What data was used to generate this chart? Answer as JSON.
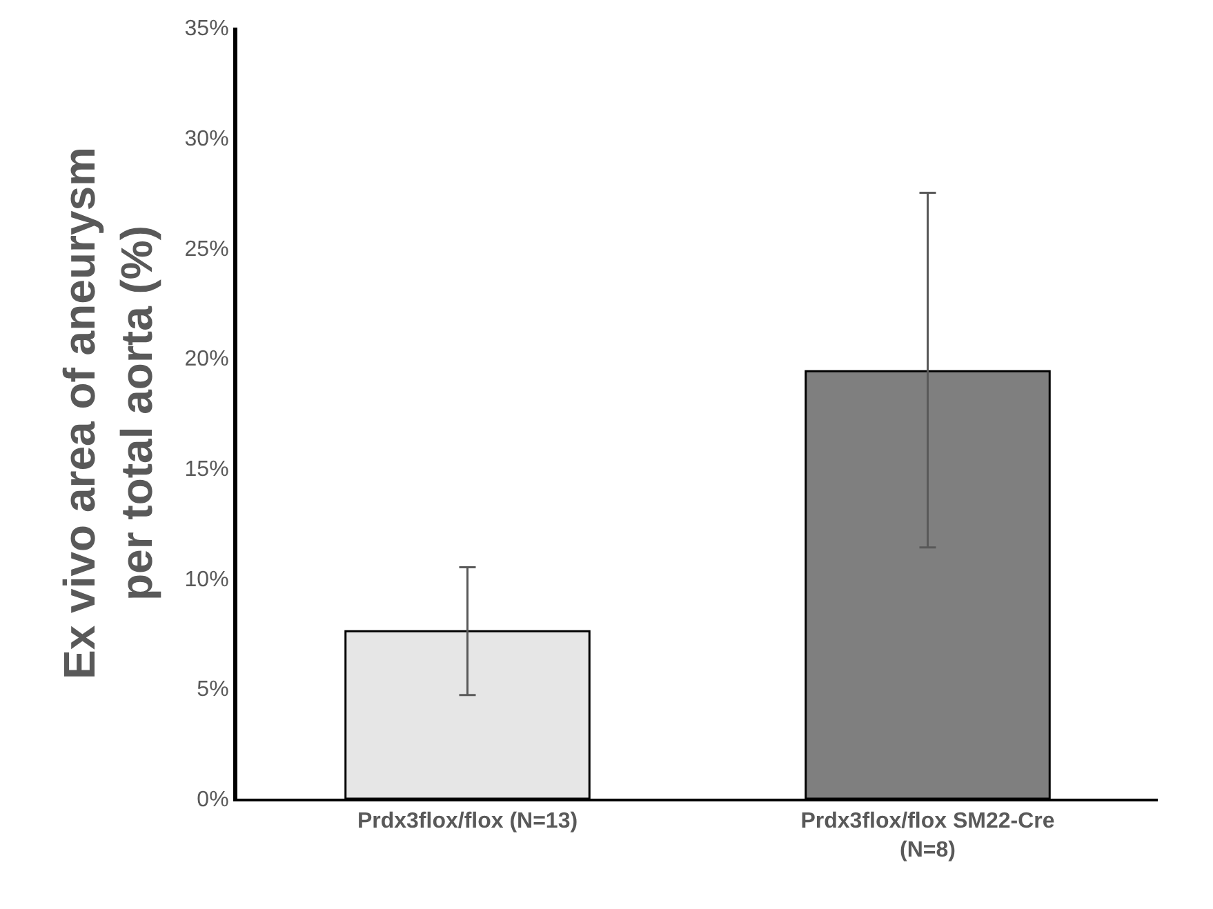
{
  "chart_data": {
    "type": "bar",
    "ylabel": "Ex vivo area of aneurysm per total aorta (%)",
    "categories": [
      "Prdx3flox/flox (N=13)",
      "Prdx3flox/flox SM22-Cre (N=8)"
    ],
    "values": [
      7.6,
      19.4
    ],
    "colors": [
      "#e6e6e6",
      "#7f7f7f"
    ],
    "errors": [
      [
        4.7,
        10.5
      ],
      [
        11.4,
        27.5
      ]
    ],
    "ylim": [
      0,
      35
    ],
    "yticks": [
      {
        "value": 0,
        "label": "0%"
      },
      {
        "value": 5,
        "label": "5%"
      },
      {
        "value": 10,
        "label": "10%"
      },
      {
        "value": 15,
        "label": "15%"
      },
      {
        "value": 20,
        "label": "20%"
      },
      {
        "value": 25,
        "label": "25%"
      },
      {
        "value": 30,
        "label": "30%"
      },
      {
        "value": 35,
        "label": "35%"
      }
    ],
    "grid": false
  }
}
